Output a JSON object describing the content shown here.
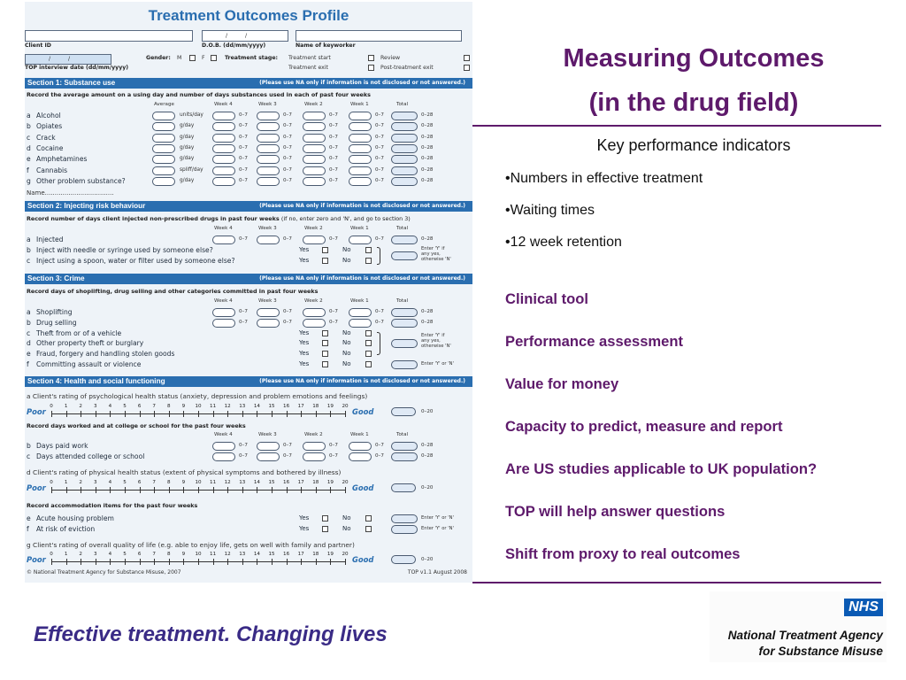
{
  "form": {
    "title": "Treatment Outcomes Profile",
    "client_id_label": "Client ID",
    "dob_label": "D.O.B. (dd/mm/yyyy)",
    "dob_slashes": "/ /",
    "keyworker_label": "Name of keyworker",
    "date_slashes": "/ /",
    "gender_label": "Gender:",
    "gender_m": "M",
    "gender_f": "F",
    "stage_label": "Treatment stage:",
    "stage_options": [
      "Treatment start",
      "Review",
      "Treatment exit",
      "Post-treatment exit"
    ],
    "top_date_label": "TOP interview date (dd/mm/yyyy)",
    "na_note": "(Please use NA only if information is not disclosed or not answered.)",
    "col_headers": [
      "Average",
      "Week 4",
      "Week 3",
      "Week 2",
      "Week 1",
      "Total"
    ],
    "range_0_7": "0–7",
    "range_0_28": "0–28",
    "range_0_20": "0–20",
    "yes": "Yes",
    "no": "No",
    "poor": "Poor",
    "good": "Good",
    "scale": [
      "0",
      "1",
      "2",
      "3",
      "4",
      "5",
      "6",
      "7",
      "8",
      "9",
      "10",
      "11",
      "12",
      "13",
      "14",
      "15",
      "16",
      "17",
      "18",
      "19",
      "20"
    ],
    "enter_y_if_any": [
      "Enter 'Y' if",
      "any yes,",
      "otherwise 'N'"
    ],
    "enter_y_or_n": "Enter 'Y' or 'N'",
    "section1": {
      "title": "Section 1: Substance use",
      "instruction": "Record the average amount on a using day and number of days substances used in each of past four weeks",
      "rows": [
        {
          "letter": "a",
          "label": "Alcohol",
          "unit": "units/day"
        },
        {
          "letter": "b",
          "label": "Opiates",
          "unit": "g/day"
        },
        {
          "letter": "c",
          "label": "Crack",
          "unit": "g/day"
        },
        {
          "letter": "d",
          "label": "Cocaine",
          "unit": "g/day"
        },
        {
          "letter": "e",
          "label": "Amphetamines",
          "unit": "g/day"
        },
        {
          "letter": "f",
          "label": "Cannabis",
          "unit": "spliff/day"
        },
        {
          "letter": "g",
          "label": "Other problem substance?",
          "unit": "g/day"
        }
      ],
      "name_line": "Name..................................."
    },
    "section2": {
      "title": "Section 2: Injecting risk behaviour",
      "instruction": "Record number of days client injected non-prescribed drugs in past four weeks",
      "instruction_tail": "(if no, enter zero and 'N', and go to section 3)",
      "rows": [
        {
          "letter": "a",
          "label": "Injected"
        },
        {
          "letter": "b",
          "label": "Inject with needle or syringe used by someone else?"
        },
        {
          "letter": "c",
          "label": "Inject using a spoon, water or filter used by someone else?"
        }
      ]
    },
    "section3": {
      "title": "Section 3: Crime",
      "instruction": "Record days of shoplifting, drug selling and other categories committed in past four weeks",
      "rows": [
        {
          "letter": "a",
          "label": "Shoplifting"
        },
        {
          "letter": "b",
          "label": "Drug selling"
        },
        {
          "letter": "c",
          "label": "Theft from or of a vehicle"
        },
        {
          "letter": "d",
          "label": "Other property theft or burglary"
        },
        {
          "letter": "e",
          "label": "Fraud, forgery and handling stolen goods"
        },
        {
          "letter": "f",
          "label": "Committing assault or violence"
        }
      ]
    },
    "section4": {
      "title": "Section 4: Health and social functioning",
      "q_a": "a Client's rating of psychological health status (anxiety, depression and problem emotions and feelings)",
      "work_instruction": "Record days worked and at college or school for the past four weeks",
      "q_b": "Days paid work",
      "q_c": "Days attended college or school",
      "q_d": "d Client's rating of physical health status (extent of physical symptoms and bothered by illness)",
      "accom_instruction": "Record accommodation items for the past four weeks",
      "q_e": "Acute housing problem",
      "q_f": "At risk of eviction",
      "q_g": "g Client's rating of overall quality of life (e.g. able to enjoy life, gets on well with family and partner)"
    },
    "footer_left": "© National Treatment Agency for Substance Misuse, 2007",
    "footer_right": "TOP v1.1 August 2008"
  },
  "slide": {
    "title_line1": "Measuring Outcomes",
    "title_line2": "(in the drug field)",
    "kpi_heading": "Key performance indicators",
    "kpis": [
      "•Numbers in effective treatment",
      "•Waiting times",
      "•12 week retention"
    ],
    "points": [
      "Clinical tool",
      "Performance assessment",
      "Value for money",
      "Capacity to predict, measure and report",
      "Are US studies applicable to UK population?",
      "TOP will help answer questions",
      "Shift from proxy to real outcomes"
    ],
    "slogan": "Effective treatment. Changing lives",
    "logo_badge": "NHS",
    "org_line1": "National Treatment Agency",
    "org_line2": "for Substance Misuse"
  },
  "colors": {
    "title_purple": "#5e1a6b",
    "form_blue": "#2a6eb0",
    "slogan_indigo": "#3a2b86",
    "nhs_blue": "#0a5ab4"
  }
}
